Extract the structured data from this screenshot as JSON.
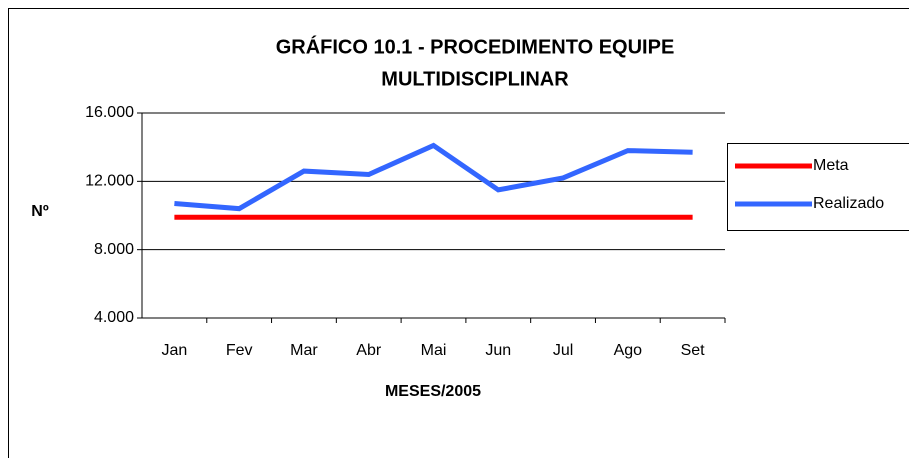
{
  "chart_data": {
    "type": "line",
    "title": [
      "GRÁFICO 10.1 - PROCEDIMENTO EQUIPE",
      "MULTIDISCIPLINAR"
    ],
    "y_label": "Nº",
    "x_label": "MESES/2005",
    "categories": [
      "Jan",
      "Fev",
      "Mar",
      "Abr",
      "Mai",
      "Jun",
      "Jul",
      "Ago",
      "Set"
    ],
    "series": [
      {
        "name": "Meta",
        "color": "#ff0000",
        "values": [
          9900,
          9900,
          9900,
          9900,
          9900,
          9900,
          9900,
          9900,
          9900
        ]
      },
      {
        "name": "Realizado",
        "color": "#3366ff",
        "values": [
          10700,
          10400,
          12600,
          12400,
          14100,
          11500,
          12200,
          13800,
          13700
        ]
      }
    ],
    "ylim": [
      4000,
      16000
    ],
    "yticks": [
      {
        "value": 4000,
        "label": "4.000"
      },
      {
        "value": 8000,
        "label": "8.000"
      },
      {
        "value": 12000,
        "label": "12.000"
      },
      {
        "value": 16000,
        "label": "16.000"
      }
    ],
    "grid": true,
    "legend": "right"
  }
}
